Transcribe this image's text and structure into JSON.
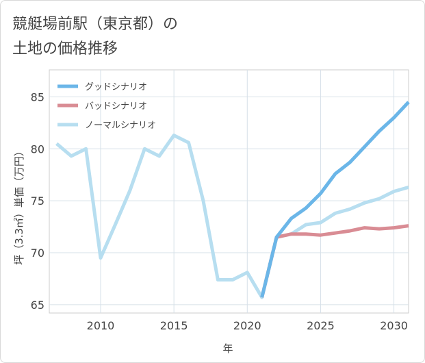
{
  "header": {
    "title_line1": "競艇場前駅（東京都）の",
    "title_line2": "土地の価格推移"
  },
  "chart_data": {
    "type": "line",
    "title": "競艇場前駅（東京都）の土地の価格推移",
    "xlabel": "年",
    "ylabel": "坪（3.3㎡）単価（万円）",
    "xlim": [
      2006.5,
      2031
    ],
    "ylim": [
      64.2,
      87.6
    ],
    "xticks": [
      2010,
      2015,
      2020,
      2025,
      2030
    ],
    "yticks": [
      65,
      70,
      75,
      80,
      85
    ],
    "grid": true,
    "legend_position": "top-left",
    "series": [
      {
        "name": "グッドシナリオ",
        "color": "#6bb6e8",
        "x": [
          2021,
          2022,
          2023,
          2024,
          2025,
          2026,
          2027,
          2028,
          2029,
          2030,
          2031
        ],
        "values": [
          65.7,
          71.5,
          73.3,
          74.3,
          75.7,
          77.6,
          78.7,
          80.2,
          81.7,
          83.0,
          84.5
        ]
      },
      {
        "name": "バッドシナリオ",
        "color": "#d98c94",
        "x": [
          2021,
          2022,
          2023,
          2024,
          2025,
          2026,
          2027,
          2028,
          2029,
          2030,
          2031
        ],
        "values": [
          65.7,
          71.5,
          71.8,
          71.8,
          71.7,
          71.9,
          72.1,
          72.4,
          72.3,
          72.4,
          72.6
        ]
      },
      {
        "name": "ノーマルシナリオ",
        "color": "#b7def0",
        "x": [
          2007,
          2008,
          2009,
          2010,
          2011,
          2012,
          2013,
          2014,
          2015,
          2016,
          2017,
          2018,
          2019,
          2020,
          2021,
          2022,
          2023,
          2024,
          2025,
          2026,
          2027,
          2028,
          2029,
          2030,
          2031
        ],
        "values": [
          80.5,
          79.3,
          80.0,
          69.5,
          72.7,
          76.0,
          80.0,
          79.3,
          81.3,
          80.6,
          75.0,
          67.4,
          67.4,
          68.1,
          65.7,
          71.5,
          71.8,
          72.7,
          72.9,
          73.8,
          74.2,
          74.8,
          75.2,
          75.9,
          76.3
        ]
      }
    ]
  }
}
